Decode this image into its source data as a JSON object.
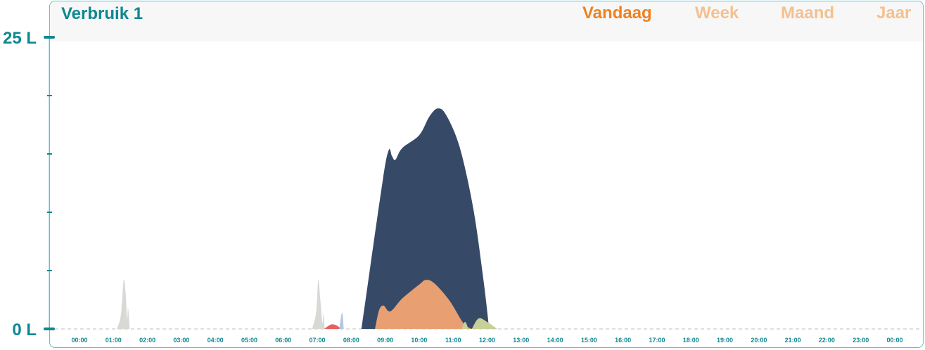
{
  "header": {
    "title": "Verbruik 1"
  },
  "tabs": [
    {
      "label": "Vandaag",
      "active": true
    },
    {
      "label": "Week",
      "active": false
    },
    {
      "label": "Maand",
      "active": false
    },
    {
      "label": "Jaar",
      "active": false
    }
  ],
  "colors": {
    "accent": "#0f8790",
    "tab_active": "#ef8122",
    "tab_inactive": "#f5c08f",
    "border": "#5cc3c9"
  },
  "chart_data": {
    "type": "area",
    "y_axis": {
      "max_label": "25 L",
      "min_label": "0 L",
      "ylim": [
        0,
        25
      ],
      "minor_ticks": [
        5,
        10,
        15,
        20
      ]
    },
    "x_tick_labels": [
      "00:00",
      "01:00",
      "02:00",
      "03:00",
      "04:00",
      "05:00",
      "06:00",
      "07:00",
      "08:00",
      "09:00",
      "10:00",
      "11:00",
      "12:00",
      "13:00",
      "14:00",
      "15:00",
      "16:00",
      "17:00",
      "18:00",
      "19:00",
      "20:00",
      "21:00",
      "22:00",
      "23:00",
      "00:00"
    ],
    "xlim_hours": [
      0,
      24
    ],
    "series": [
      {
        "color": "#d6d9d4",
        "points": [
          [
            1.1,
            0
          ],
          [
            1.22,
            1.2
          ],
          [
            1.3,
            4.2
          ],
          [
            1.36,
            3.0
          ],
          [
            1.4,
            0.8
          ],
          [
            1.43,
            1.8
          ],
          [
            1.48,
            0
          ]
        ]
      },
      {
        "color": "#d6d9d4",
        "points": [
          [
            6.85,
            0
          ],
          [
            6.97,
            1.5
          ],
          [
            7.03,
            4.2
          ],
          [
            7.09,
            2.5
          ],
          [
            7.15,
            0.5
          ],
          [
            7.18,
            1.3
          ],
          [
            7.22,
            0
          ]
        ]
      },
      {
        "color": "#e4615e",
        "points": [
          [
            7.2,
            0
          ],
          [
            7.35,
            0.3
          ],
          [
            7.45,
            0.4
          ],
          [
            7.6,
            0.25
          ],
          [
            7.7,
            0
          ]
        ]
      },
      {
        "color": "#b3c6e3",
        "points": [
          [
            7.65,
            0
          ],
          [
            7.73,
            1.4
          ],
          [
            7.78,
            0
          ]
        ]
      },
      {
        "color": "#364a68",
        "points": [
          [
            8.3,
            0
          ],
          [
            8.9,
            12.2
          ],
          [
            9.1,
            15.3
          ],
          [
            9.2,
            14.8
          ],
          [
            9.3,
            14.5
          ],
          [
            9.5,
            15.5
          ],
          [
            10.0,
            16.6
          ],
          [
            10.3,
            18.2
          ],
          [
            10.55,
            18.9
          ],
          [
            10.8,
            18.3
          ],
          [
            11.2,
            15.5
          ],
          [
            11.6,
            10.2
          ],
          [
            11.9,
            4.0
          ],
          [
            12.06,
            0
          ]
        ]
      },
      {
        "color": "#e8a072",
        "points": [
          [
            8.7,
            0
          ],
          [
            8.82,
            1.6
          ],
          [
            8.95,
            2.0
          ],
          [
            9.15,
            1.5
          ],
          [
            9.5,
            2.6
          ],
          [
            10.0,
            3.8
          ],
          [
            10.2,
            4.2
          ],
          [
            10.45,
            3.9
          ],
          [
            10.9,
            2.4
          ],
          [
            11.3,
            0.5
          ],
          [
            11.55,
            0
          ]
        ]
      },
      {
        "color": "#c8d09a",
        "points": [
          [
            11.25,
            0
          ],
          [
            11.35,
            0.6
          ],
          [
            11.45,
            0
          ]
        ]
      },
      {
        "color": "#c8d09a",
        "points": [
          [
            11.55,
            0
          ],
          [
            11.75,
            0.9
          ],
          [
            12.0,
            0.6
          ],
          [
            12.3,
            0
          ]
        ]
      }
    ]
  }
}
